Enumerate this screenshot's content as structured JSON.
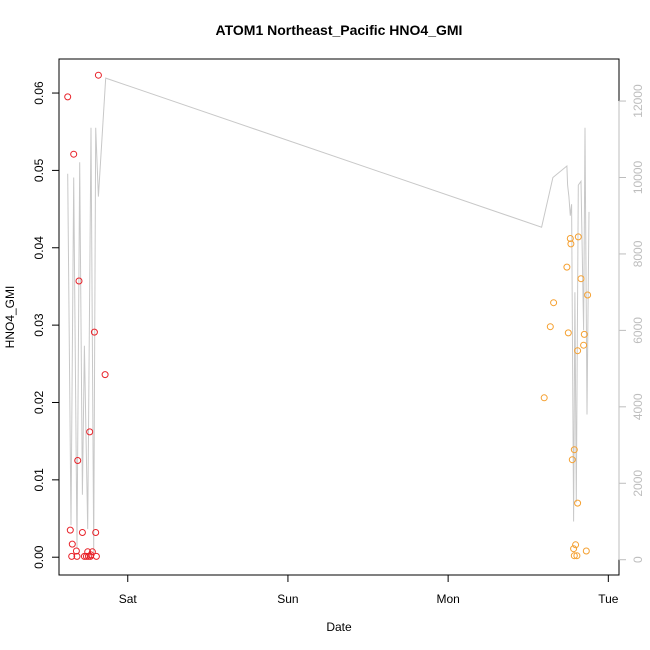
{
  "chart_data": {
    "type": "scatter",
    "title": "ATOM1 Northeast_Pacific HNO4_GMI",
    "xlabel": "Date",
    "ylabel": "HNO4_GMI",
    "x_ticks": [
      {
        "label": "Sat",
        "value": 0
      },
      {
        "label": "Sun",
        "value": 24
      },
      {
        "label": "Mon",
        "value": 48
      },
      {
        "label": "Tue",
        "value": 72
      }
    ],
    "xlim": [
      -10.3,
      73.6
    ],
    "ylim": [
      -0.0023,
      0.0644
    ],
    "y_ticks": [
      0.0,
      0.01,
      0.02,
      0.03,
      0.04,
      0.05,
      0.06
    ],
    "y_tick_labels": [
      "0.00",
      "0.01",
      "0.02",
      "0.03",
      "0.04",
      "0.05",
      "0.06"
    ],
    "right_axis": {
      "ylim": [
        -400,
        13100
      ],
      "ticks": [
        0,
        2000,
        4000,
        6000,
        8000,
        10000,
        12000
      ],
      "tick_labels": [
        "0",
        "2000",
        "4000",
        "6000",
        "8000",
        "10000",
        "12000"
      ],
      "color": "#bdbdbd"
    },
    "series": [
      {
        "color": "#e8232a",
        "marker": "open-circle",
        "axis": "left",
        "points": [
          [
            -9.0,
            0.0595
          ],
          [
            -8.6,
            0.0035
          ],
          [
            -8.3,
            0.0017
          ],
          [
            -8.1,
            0.0521
          ],
          [
            -8.4,
            0.0001
          ],
          [
            -7.7,
            0.0008
          ],
          [
            -7.5,
            0.0125
          ],
          [
            -7.3,
            0.0357
          ],
          [
            -7.6,
            0.0001
          ],
          [
            -6.8,
            0.0032
          ],
          [
            -6.5,
            0.0001
          ],
          [
            -6.2,
            0.0001
          ],
          [
            -6.0,
            0.0007
          ],
          [
            -5.7,
            0.0162
          ],
          [
            -5.5,
            0.0003
          ],
          [
            -5.3,
            0.0007
          ],
          [
            -5.0,
            0.0291
          ],
          [
            -4.8,
            0.0032
          ],
          [
            -4.7,
            0.0001
          ],
          [
            -4.4,
            0.0623
          ],
          [
            -5.9,
            0.0001
          ],
          [
            -5.6,
            0.0001
          ],
          [
            -3.4,
            0.0236
          ]
        ]
      },
      {
        "color": "#f5a030",
        "marker": "open-circle",
        "axis": "left",
        "points": [
          [
            62.4,
            0.0206
          ],
          [
            63.3,
            0.0298
          ],
          [
            63.8,
            0.0329
          ],
          [
            65.8,
            0.0375
          ],
          [
            66.0,
            0.029
          ],
          [
            66.3,
            0.0412
          ],
          [
            66.4,
            0.0405
          ],
          [
            66.6,
            0.0126
          ],
          [
            66.8,
            0.0011
          ],
          [
            66.9,
            0.0139
          ],
          [
            66.9,
            0.0002
          ],
          [
            67.1,
            0.0016
          ],
          [
            67.3,
            0.0002
          ],
          [
            67.4,
            0.007
          ],
          [
            67.4,
            0.0267
          ],
          [
            67.5,
            0.0414
          ],
          [
            67.9,
            0.036
          ],
          [
            68.4,
            0.0288
          ],
          [
            68.3,
            0.0274
          ],
          [
            68.7,
            0.0008
          ],
          [
            68.9,
            0.0339
          ]
        ]
      },
      {
        "color": "#c8c8c8",
        "marker": "line",
        "axis": "right",
        "points": [
          [
            -9.0,
            10100
          ],
          [
            -8.5,
            900
          ],
          [
            -8.1,
            10000
          ],
          [
            -7.6,
            300
          ],
          [
            -7.2,
            10400
          ],
          [
            -6.8,
            1700
          ],
          [
            -6.5,
            5600
          ],
          [
            -6.0,
            800
          ],
          [
            -5.5,
            11300
          ],
          [
            -5.1,
            200
          ],
          [
            -4.8,
            11300
          ],
          [
            -4.4,
            9500
          ],
          [
            -3.3,
            12600
          ],
          [
            62.0,
            8700
          ],
          [
            63.7,
            10000
          ],
          [
            65.8,
            10300
          ],
          [
            65.9,
            9800
          ],
          [
            66.1,
            9500
          ],
          [
            66.3,
            9000
          ],
          [
            66.5,
            9300
          ],
          [
            66.8,
            1000
          ],
          [
            67.0,
            7000
          ],
          [
            67.2,
            1500
          ],
          [
            67.5,
            9800
          ],
          [
            67.9,
            9900
          ],
          [
            68.3,
            6000
          ],
          [
            68.5,
            11300
          ],
          [
            68.8,
            3800
          ],
          [
            69.1,
            9100
          ]
        ]
      }
    ],
    "grid": false,
    "legend": "none"
  }
}
